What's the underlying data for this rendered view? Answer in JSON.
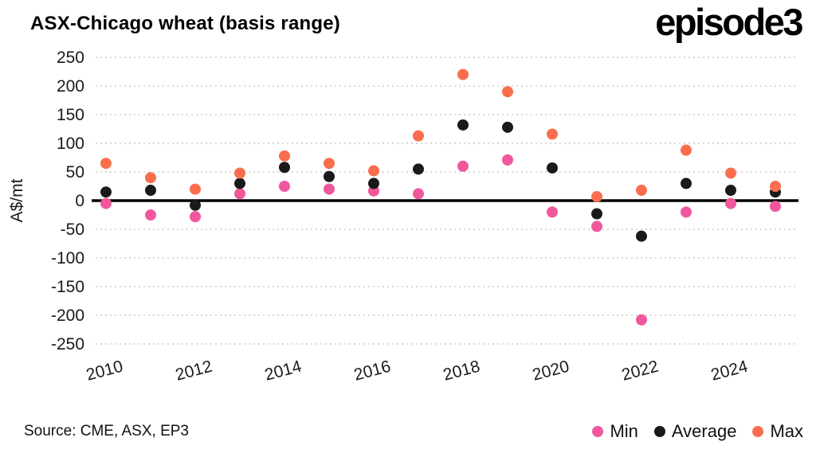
{
  "header": {
    "title": "ASX-Chicago wheat (basis range)",
    "logo": "episode3"
  },
  "footer": {
    "source": "Source: CME, ASX, EP3"
  },
  "legend": [
    {
      "label": "Min",
      "color": "#f0579d"
    },
    {
      "label": "Average",
      "color": "#1a1a1a"
    },
    {
      "label": "Max",
      "color": "#fa6e4e"
    }
  ],
  "colors": {
    "min": "#f0579d",
    "average": "#1a1a1a",
    "max": "#fa6e4e",
    "gridline": "#cccccc",
    "zero_line": "#000000"
  },
  "chart_data": {
    "type": "scatter",
    "title": "ASX-Chicago wheat (basis range)",
    "xlabel": "",
    "ylabel": "A$/mt",
    "ylim": [
      -250,
      250
    ],
    "ytick_step": 50,
    "ytick_labels": [
      "250",
      "200",
      "150",
      "100",
      "50",
      "0",
      "-50",
      "-100",
      "-150",
      "-200",
      "-250"
    ],
    "x": [
      2010,
      2011,
      2012,
      2013,
      2014,
      2015,
      2016,
      2017,
      2018,
      2019,
      2020,
      2021,
      2022,
      2023,
      2024,
      2025
    ],
    "xtick_labels": [
      "2010",
      "2012",
      "2014",
      "2016",
      "2018",
      "2020",
      "2022",
      "2024"
    ],
    "xtick_rotation": -15,
    "grid": "horizontal-dotted",
    "legend_position": "bottom-right",
    "series": [
      {
        "name": "Min",
        "color": "#f0579d",
        "values": [
          -5,
          -25,
          -28,
          12,
          25,
          20,
          17,
          12,
          60,
          71,
          -20,
          -45,
          -208,
          -20,
          -5,
          -10
        ]
      },
      {
        "name": "Average",
        "color": "#1a1a1a",
        "values": [
          15,
          18,
          -8,
          30,
          58,
          42,
          30,
          55,
          132,
          128,
          57,
          -23,
          -62,
          30,
          18,
          15
        ]
      },
      {
        "name": "Max",
        "color": "#fa6e4e",
        "values": [
          65,
          40,
          20,
          48,
          78,
          65,
          52,
          113,
          220,
          190,
          116,
          7,
          18,
          88,
          48,
          25
        ]
      }
    ]
  }
}
